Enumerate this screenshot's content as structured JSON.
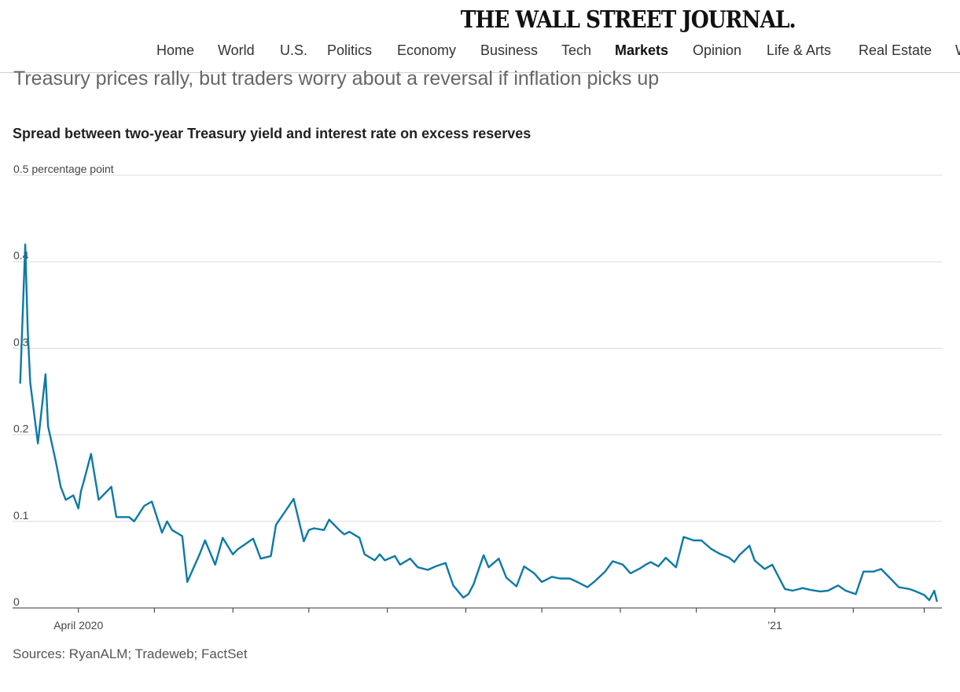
{
  "masthead": {
    "logo": "THE WALL STREET JOURNAL."
  },
  "nav": {
    "items": [
      "Home",
      "World",
      "U.S.",
      "Politics",
      "Economy",
      "Business",
      "Tech",
      "Markets",
      "Opinion",
      "Life & Arts",
      "Real Estate",
      "W"
    ],
    "active": "Markets"
  },
  "article": {
    "headline": "Treasury prices rally, but traders worry about a reversal if inflation picks up",
    "source": "Sources: RyanALM; Tradeweb; FactSet"
  },
  "chart_data": {
    "type": "line",
    "title": "Spread between two-year Treasury yield and interest rate on excess reserves",
    "unit_label": "0.5 percentage point",
    "ylim": [
      0,
      0.5
    ],
    "yticks": [
      0,
      0.1,
      0.2,
      0.3,
      0.4,
      0.5
    ],
    "ytick_labels": [
      "0",
      "0.1",
      "0.2",
      "0.3",
      "0.4",
      "0.5 percentage point"
    ],
    "xlim": [
      "2020-03-06",
      "2021-03-08"
    ],
    "x_tick_dates": [
      "2020-04-01",
      "2020-05-01",
      "2020-06-01",
      "2020-07-01",
      "2020-08-01",
      "2020-09-01",
      "2020-10-01",
      "2020-11-01",
      "2020-12-01",
      "2021-01-01",
      "2021-02-01",
      "2021-03-01"
    ],
    "x_tick_labels": [
      {
        "date": "2020-04-01",
        "label": "April 2020"
      },
      {
        "date": "2021-01-01",
        "label": "’21"
      }
    ],
    "grid": true,
    "line_color": "#0c7aa6",
    "series": [
      {
        "x": [
          "2020-03-09",
          "2020-03-11",
          "2020-03-12",
          "2020-03-13",
          "2020-03-16",
          "2020-03-19",
          "2020-03-20",
          "2020-03-23",
          "2020-03-24",
          "2020-03-25",
          "2020-03-27",
          "2020-03-30",
          "2020-04-01",
          "2020-04-02",
          "2020-04-03",
          "2020-04-06",
          "2020-04-09",
          "2020-04-14",
          "2020-04-16",
          "2020-04-21",
          "2020-04-23",
          "2020-04-27",
          "2020-04-30",
          "2020-05-04",
          "2020-05-06",
          "2020-05-08",
          "2020-05-12",
          "2020-05-14",
          "2020-05-19",
          "2020-05-21",
          "2020-05-25",
          "2020-05-28",
          "2020-06-01",
          "2020-06-03",
          "2020-06-05",
          "2020-06-09",
          "2020-06-12",
          "2020-06-16",
          "2020-06-18",
          "2020-06-22",
          "2020-06-25",
          "2020-06-29",
          "2020-07-01",
          "2020-07-03",
          "2020-07-07",
          "2020-07-09",
          "2020-07-13",
          "2020-07-15",
          "2020-07-17",
          "2020-07-21",
          "2020-07-23",
          "2020-07-27",
          "2020-07-29",
          "2020-07-31",
          "2020-08-04",
          "2020-08-06",
          "2020-08-10",
          "2020-08-13",
          "2020-08-17",
          "2020-08-20",
          "2020-08-24",
          "2020-08-27",
          "2020-08-31",
          "2020-09-02",
          "2020-09-04",
          "2020-09-08",
          "2020-09-10",
          "2020-09-14",
          "2020-09-17",
          "2020-09-21",
          "2020-09-24",
          "2020-09-28",
          "2020-10-01",
          "2020-10-05",
          "2020-10-08",
          "2020-10-12",
          "2020-10-15",
          "2020-10-19",
          "2020-10-22",
          "2020-10-26",
          "2020-10-29",
          "2020-11-02",
          "2020-11-05",
          "2020-11-09",
          "2020-11-11",
          "2020-11-13",
          "2020-11-16",
          "2020-11-19",
          "2020-11-23",
          "2020-11-26",
          "2020-11-30",
          "2020-12-03",
          "2020-12-07",
          "2020-12-10",
          "2020-12-14",
          "2020-12-16",
          "2020-12-18",
          "2020-12-22",
          "2020-12-24",
          "2020-12-28",
          "2020-12-31",
          "2021-01-05",
          "2021-01-08",
          "2021-01-12",
          "2021-01-15",
          "2021-01-19",
          "2021-01-22",
          "2021-01-26",
          "2021-01-29",
          "2021-02-02",
          "2021-02-05",
          "2021-02-09",
          "2021-02-12",
          "2021-02-16",
          "2021-02-19",
          "2021-02-23",
          "2021-02-25",
          "2021-03-01",
          "2021-03-03",
          "2021-03-05",
          "2021-03-06"
        ],
        "y": [
          0.26,
          0.42,
          0.32,
          0.26,
          0.19,
          0.27,
          0.21,
          0.17,
          0.155,
          0.14,
          0.125,
          0.13,
          0.115,
          0.135,
          0.145,
          0.178,
          0.125,
          0.14,
          0.105,
          0.105,
          0.1,
          0.118,
          0.123,
          0.087,
          0.1,
          0.09,
          0.083,
          0.03,
          0.063,
          0.078,
          0.05,
          0.081,
          0.062,
          0.068,
          0.072,
          0.08,
          0.057,
          0.06,
          0.096,
          0.113,
          0.126,
          0.077,
          0.09,
          0.092,
          0.09,
          0.102,
          0.09,
          0.085,
          0.088,
          0.081,
          0.062,
          0.055,
          0.062,
          0.055,
          0.06,
          0.05,
          0.057,
          0.047,
          0.044,
          0.048,
          0.052,
          0.026,
          0.012,
          0.016,
          0.027,
          0.061,
          0.047,
          0.057,
          0.035,
          0.025,
          0.048,
          0.04,
          0.03,
          0.036,
          0.034,
          0.034,
          0.03,
          0.024,
          0.031,
          0.042,
          0.054,
          0.05,
          0.04,
          0.046,
          0.05,
          0.053,
          0.048,
          0.058,
          0.047,
          0.082,
          0.078,
          0.078,
          0.068,
          0.063,
          0.058,
          0.053,
          0.061,
          0.072,
          0.055,
          0.045,
          0.05,
          0.022,
          0.02,
          0.023,
          0.021,
          0.019,
          0.02,
          0.026,
          0.02,
          0.016,
          0.042,
          0.042,
          0.045,
          0.033,
          0.024,
          0.022,
          0.02,
          0.015,
          0.009,
          0.02,
          0.008
        ]
      }
    ]
  }
}
